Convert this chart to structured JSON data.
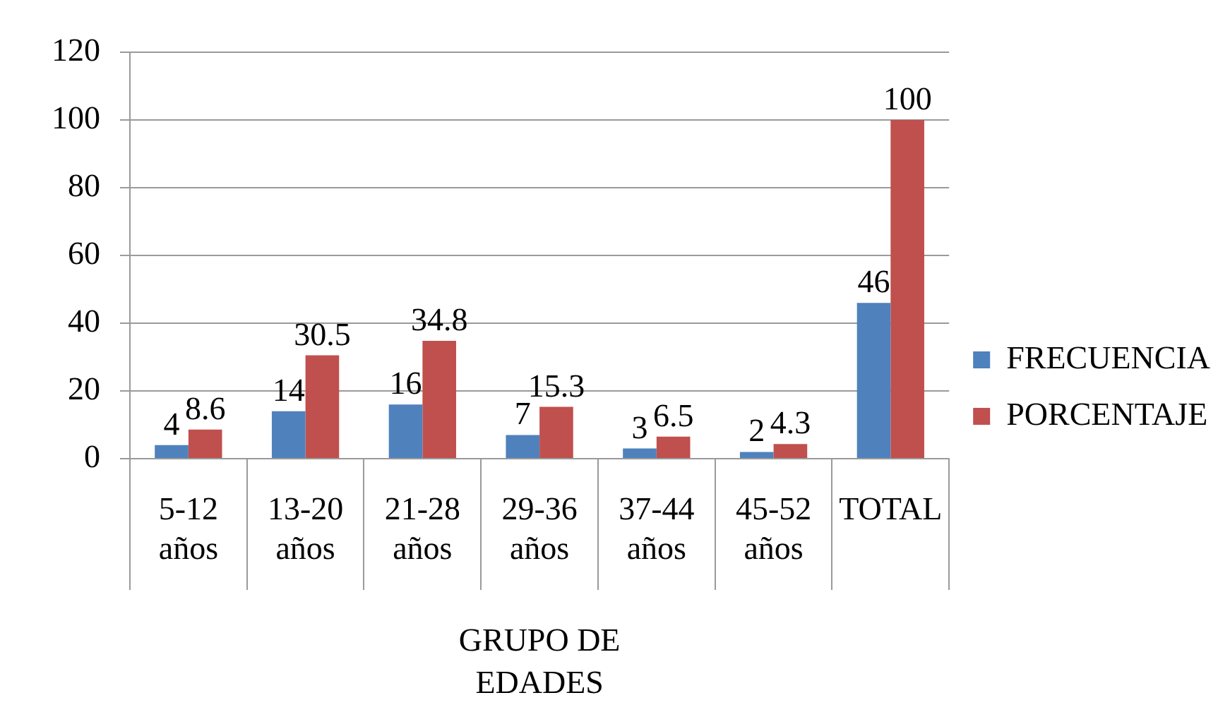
{
  "chart_data": {
    "type": "bar",
    "categories": [
      "5-12 años",
      "13-20 años",
      "21-28 años",
      "29-36 años",
      "37-44 años",
      "45-52 años",
      "TOTAL"
    ],
    "series": [
      {
        "name": "FRECUENCIA",
        "color": "#4f81bd",
        "values": [
          4,
          14,
          16,
          7,
          3,
          2,
          46
        ]
      },
      {
        "name": "PORCENTAJE",
        "color": "#c0504d",
        "values": [
          8.6,
          30.5,
          34.8,
          15.3,
          6.5,
          4.3,
          100
        ]
      }
    ],
    "xlabel": "GRUPO DE EDADES",
    "ylim": [
      0,
      120
    ],
    "yticks": [
      0,
      20,
      40,
      60,
      80,
      100,
      120
    ],
    "grid": "y",
    "legend": "right",
    "data_labels": true
  }
}
